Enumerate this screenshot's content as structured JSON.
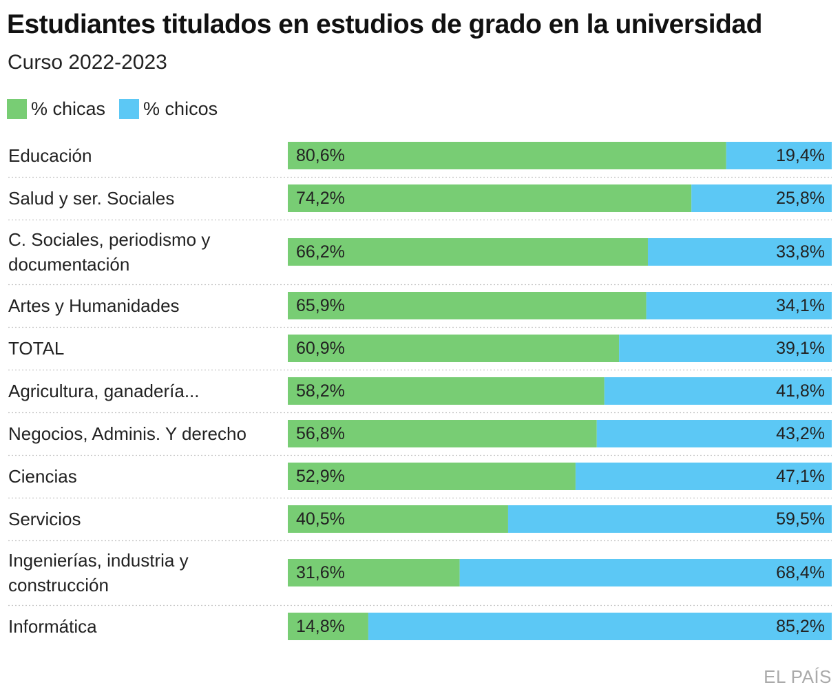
{
  "header": {
    "title": "Estudiantes titulados en estudios de grado en la universidad",
    "subtitle": "Curso 2022-2023"
  },
  "legend": [
    {
      "label": "% chicas",
      "color": "#78cd74"
    },
    {
      "label": "% chicos",
      "color": "#5cc8f5"
    }
  ],
  "chart_data": {
    "type": "bar",
    "orientation": "horizontal",
    "stacked": true,
    "percent_stacked": true,
    "title": "Estudiantes titulados en estudios de grado en la universidad",
    "subtitle": "Curso 2022-2023",
    "xlim": [
      0,
      100
    ],
    "categories": [
      [
        "Educación"
      ],
      [
        "Salud y ser. Sociales"
      ],
      [
        "C. Sociales, periodismo y",
        "documentación"
      ],
      [
        "Artes y Humanidades"
      ],
      [
        "TOTAL"
      ],
      [
        "Agricultura, ganadería..."
      ],
      [
        "Negocios, Adminis. Y derecho"
      ],
      [
        "Ciencias"
      ],
      [
        "Servicios"
      ],
      [
        "Ingenierías, industria y",
        "construcción"
      ],
      [
        "Informática"
      ]
    ],
    "series": [
      {
        "name": "% chicas",
        "color": "#78cd74",
        "values": [
          80.6,
          74.2,
          66.2,
          65.9,
          60.9,
          58.2,
          56.8,
          52.9,
          40.5,
          31.6,
          14.8
        ],
        "labels": [
          "80,6%",
          "74,2%",
          "66,2%",
          "65,9%",
          "60,9%",
          "58,2%",
          "56,8%",
          "52,9%",
          "40,5%",
          "31,6%",
          "14,8%"
        ]
      },
      {
        "name": "% chicos",
        "color": "#5cc8f5",
        "values": [
          19.4,
          25.8,
          33.8,
          34.1,
          39.1,
          41.8,
          43.2,
          47.1,
          59.5,
          68.4,
          85.2
        ],
        "labels": [
          "19,4%",
          "25,8%",
          "33,8%",
          "34,1%",
          "39,1%",
          "41,8%",
          "43,2%",
          "47,1%",
          "59,5%",
          "68,4%",
          "85,2%"
        ]
      }
    ]
  },
  "source": "EL PAÍS"
}
